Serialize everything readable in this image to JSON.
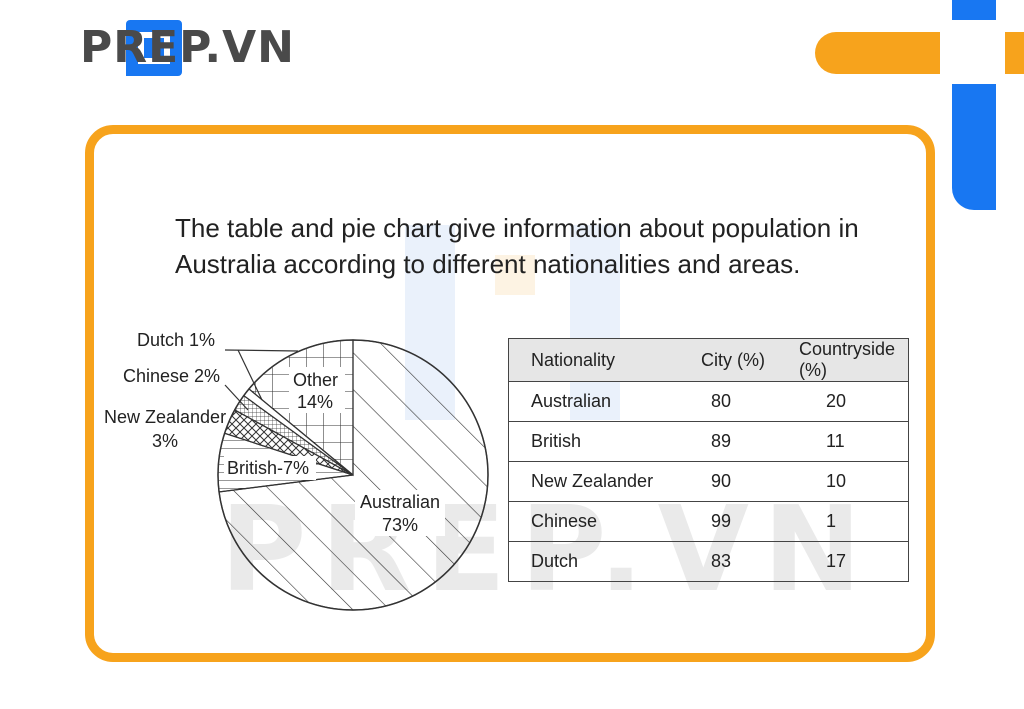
{
  "brand": {
    "name": "PREP.VN",
    "watermark": "PREP.VN"
  },
  "prompt": "The table and pie chart give information about population in Australia according to different nationalities and areas.",
  "colors": {
    "orange": "#f7a31c",
    "blue": "#1877f2"
  },
  "chart_data": [
    {
      "type": "pie",
      "title": "",
      "slices": [
        {
          "label": "Australian",
          "value": 73,
          "display": "Australian\n73%"
        },
        {
          "label": "British",
          "value": 7,
          "display": "British-7%"
        },
        {
          "label": "New Zealander",
          "value": 3,
          "display": "New Zealander\n3%"
        },
        {
          "label": "Chinese",
          "value": 2,
          "display": "Chinese 2%"
        },
        {
          "label": "Dutch",
          "value": 1,
          "display": "Dutch 1%"
        },
        {
          "label": "Other",
          "value": 14,
          "display": "Other\n14%"
        }
      ],
      "labels": {
        "australian": [
          "Australian",
          "73%"
        ],
        "british": "British-7%",
        "nz": [
          "New Zealander",
          "3%"
        ],
        "chinese": "Chinese 2%",
        "dutch": "Dutch 1%",
        "other": [
          "Other",
          "14%"
        ]
      }
    },
    {
      "type": "table",
      "columns": [
        "Nationality",
        "City (%)",
        "Countryside (%)"
      ],
      "rows": [
        [
          "Australian",
          "80",
          "20"
        ],
        [
          "British",
          "89",
          "11"
        ],
        [
          "New Zealander",
          "90",
          "10"
        ],
        [
          "Chinese",
          "99",
          "1"
        ],
        [
          "Dutch",
          "83",
          "17"
        ]
      ]
    }
  ]
}
